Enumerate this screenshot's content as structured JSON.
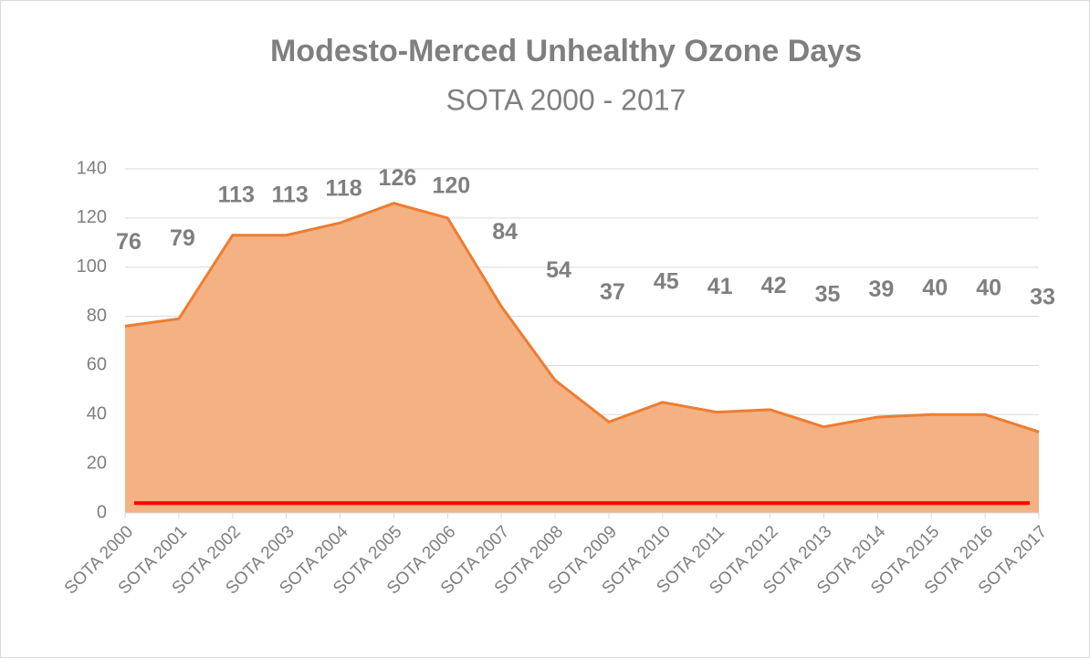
{
  "chart_data": {
    "type": "area",
    "title": "Modesto-Merced  Unhealthy  Ozone  Days",
    "subtitle": "SOTA  2000  -  2017",
    "categories": [
      "SOTA 2000",
      "SOTA 2001",
      "SOTA 2002",
      "SOTA 2003",
      "SOTA 2004",
      "SOTA 2005",
      "SOTA 2006",
      "SOTA 2007",
      "SOTA 2008",
      "SOTA 2009",
      "SOTA 2010",
      "SOTA 2011",
      "SOTA 2012",
      "SOTA 2013",
      "SOTA 2014",
      "SOTA 2015",
      "SOTA 2016",
      "SOTA 2017"
    ],
    "values": [
      76,
      79,
      113,
      113,
      118,
      126,
      120,
      84,
      54,
      37,
      45,
      41,
      42,
      35,
      39,
      40,
      40,
      33
    ],
    "color": "#f4b183",
    "line_color": "#ed7d31",
    "reference_line": {
      "value": 4,
      "color": "#ff0000"
    },
    "ylim": [
      0,
      140
    ],
    "yticks": [
      0,
      20,
      40,
      60,
      80,
      100,
      120,
      140
    ],
    "grid": true
  }
}
